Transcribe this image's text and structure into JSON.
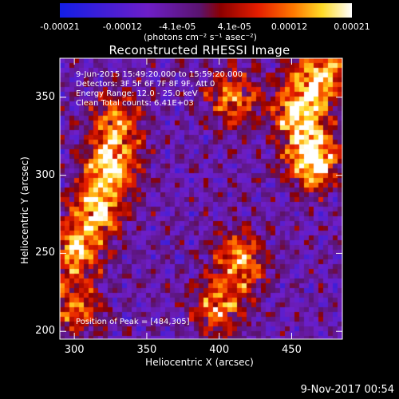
{
  "chart_data": {
    "type": "heatmap",
    "title": "Reconstructed RHESSI Image",
    "xlabel": "Heliocentric X (arcsec)",
    "ylabel": "Heliocentric Y (arcsec)",
    "xlim": [
      290,
      485
    ],
    "ylim": [
      195,
      375
    ],
    "x_ticks": [
      "300",
      "350",
      "400",
      "450"
    ],
    "y_ticks": [
      "200",
      "250",
      "300",
      "350"
    ],
    "colorbar": {
      "ticks": [
        "-0.00021",
        "-0.00012",
        "-4.1e-05",
        "4.1e-05",
        "0.00012",
        "0.00021"
      ],
      "units": "(photons cm⁻² s⁻¹ asec⁻²)",
      "range": [
        -0.00021,
        0.00021
      ]
    },
    "annotations": {
      "time_range": "9-Jun-2015 15:49:20.000 to 15:59:20.000",
      "detectors": "Detectors: 3F 5F 6F 7F 8F 9F, Att 0",
      "energy": "Energy Range: 12.0 - 25.0 keV",
      "clean": "Clean     Total counts: 6.41E+03",
      "peak": "Position of Peak = [484,305]"
    },
    "bright_regions": [
      {
        "x": 465,
        "y": 310,
        "intensity": 0.95
      },
      {
        "x": 455,
        "y": 340,
        "intensity": 0.8
      },
      {
        "x": 325,
        "y": 305,
        "intensity": 0.8
      },
      {
        "x": 315,
        "y": 275,
        "intensity": 0.7
      },
      {
        "x": 300,
        "y": 250,
        "intensity": 0.6
      },
      {
        "x": 330,
        "y": 335,
        "intensity": 0.55
      },
      {
        "x": 415,
        "y": 245,
        "intensity": 0.65
      },
      {
        "x": 400,
        "y": 215,
        "intensity": 0.55
      },
      {
        "x": 410,
        "y": 350,
        "intensity": 0.55
      },
      {
        "x": 300,
        "y": 215,
        "intensity": 0.5
      },
      {
        "x": 470,
        "y": 365,
        "intensity": 0.7
      }
    ]
  },
  "footer": {
    "timestamp": "9-Nov-2017 00:54"
  }
}
